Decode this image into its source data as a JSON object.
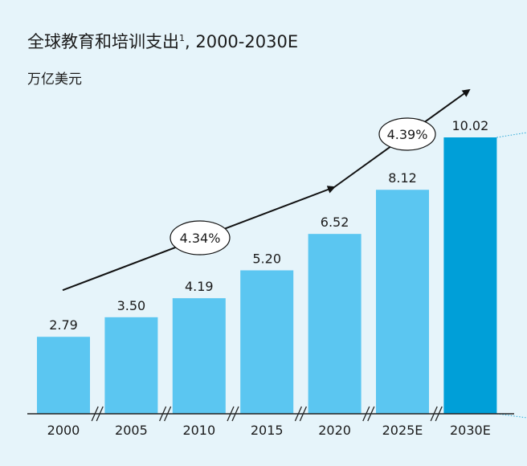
{
  "chart_data": {
    "type": "bar",
    "title": "全球教育和培训支出",
    "title_footnote": "1",
    "title_suffix": ", 2000-2030E",
    "unit_label": "万亿美元",
    "categories": [
      "2000",
      "2005",
      "2010",
      "2015",
      "2020",
      "2025E",
      "2030E"
    ],
    "values": [
      2.79,
      3.5,
      4.19,
      5.2,
      6.52,
      8.12,
      10.02
    ],
    "data_labels": [
      "2.79",
      "3.50",
      "4.19",
      "5.20",
      "6.52",
      "8.12",
      "10.02"
    ],
    "ylim": [
      0,
      10.02
    ],
    "grid": false,
    "colors": {
      "bar": "#5bc6f1",
      "highlight_bar": "#009fd8",
      "background": "#e6f4fa",
      "guide_line": "#2aa7d6"
    },
    "highlight_index": 6,
    "annotations": [
      {
        "label": "4.34%",
        "from_category": "2000",
        "to_category": "2020"
      },
      {
        "label": "4.39%",
        "from_category": "2020",
        "to_category": "2030E"
      }
    ]
  }
}
